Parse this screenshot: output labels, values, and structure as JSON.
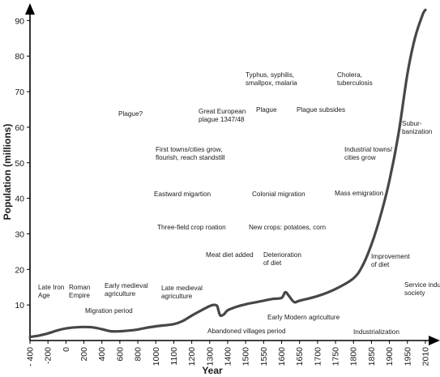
{
  "chart_data": {
    "type": "line",
    "title": "",
    "xlabel": "Year",
    "ylabel": "Population (millions)",
    "x_tick_labels": [
      "- 400",
      "-200",
      "0",
      "200",
      "400",
      "600",
      "800",
      "1000",
      "1100",
      "1200",
      "1300",
      "1400",
      "1500",
      "1550",
      "1600",
      "1650",
      "1700",
      "1750",
      "1800",
      "1850",
      "1900",
      "1950",
      "2010"
    ],
    "y_ticks": [
      10,
      20,
      30,
      40,
      50,
      60,
      70,
      80,
      90
    ],
    "ylim": [
      0,
      95
    ],
    "grid": false,
    "series": [
      {
        "x": [
          -400,
          -300,
          -200,
          -100,
          0,
          100,
          200,
          300,
          400,
          500,
          600,
          700,
          800,
          900,
          1000,
          1100,
          1150,
          1200,
          1250,
          1300,
          1320,
          1340,
          1350,
          1360,
          1380,
          1400,
          1450,
          1500,
          1525,
          1550,
          1575,
          1600,
          1610,
          1620,
          1635,
          1650,
          1700,
          1750,
          1800,
          1825,
          1850,
          1875,
          1900,
          1925,
          1950,
          1975,
          2000,
          2010
        ],
        "y": [
          1.0,
          1.4,
          2.0,
          2.8,
          3.4,
          3.7,
          3.8,
          3.7,
          3.2,
          2.6,
          2.6,
          2.8,
          3.1,
          3.6,
          4.0,
          4.6,
          5.5,
          7.0,
          8.4,
          9.7,
          10.0,
          9.8,
          8.2,
          7.0,
          7.4,
          8.5,
          9.5,
          10.2,
          10.7,
          11.2,
          11.7,
          12.0,
          13.6,
          12.6,
          10.8,
          11.2,
          12.5,
          14.5,
          17.5,
          21.0,
          27.0,
          35.0,
          45.0,
          58.0,
          75.0,
          85.0,
          91.5,
          93.0
        ]
      }
    ],
    "annotations": [
      "Late Iron Age",
      "Roman Empire",
      "Early medieval agriculture",
      "Migration period",
      "Plague?",
      "Late medieval agriculture",
      "Eastward migartion",
      "First towns/cities grow, flourish, reach standstill",
      "Three-field crop roation",
      "Great European plague 1347/48",
      "Meat diet added",
      "Abandoned villages period",
      "Typhus, syphilis, smallpox, malaria",
      "Plague",
      "Plague subsides",
      "Colonial migration",
      "New crops: potatoes, corn",
      "Deterioration of diet",
      "Early Modern agriculture",
      "Cholera, tuberculosis",
      "Industrial towns/ cities grow",
      "Mass emigration",
      "Improvement of diet",
      "Industrialization",
      "Subur- banization",
      "Service industry society"
    ]
  }
}
